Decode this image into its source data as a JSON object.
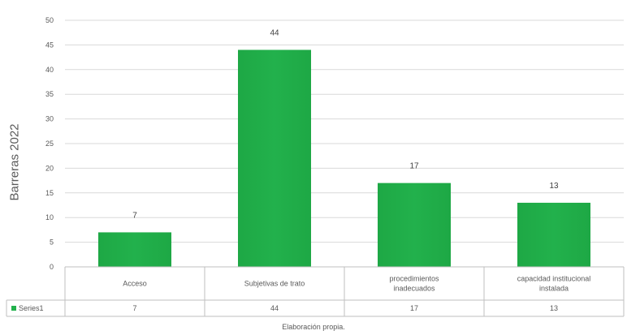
{
  "chart_data": {
    "type": "bar",
    "categories": [
      "Acceso",
      "Subjetivas de trato",
      "procedimientos inadecuados",
      "capacidad institucional instalada"
    ],
    "category_lines": [
      [
        "Acceso"
      ],
      [
        "Subjetivas de trato"
      ],
      [
        "procedimientos",
        "inadecuados"
      ],
      [
        "capacidad institucional",
        "instalada"
      ]
    ],
    "series": [
      {
        "name": "Series1",
        "values": [
          7,
          44,
          17,
          13
        ]
      }
    ],
    "ylabel": "Barreras 2022",
    "ylim": [
      0,
      50
    ],
    "yticks": [
      0,
      5,
      10,
      15,
      20,
      25,
      30,
      35,
      40,
      45,
      50
    ],
    "data_labels": [
      "7",
      "44",
      "17",
      "13"
    ],
    "data_table": true,
    "grid": true,
    "legend": "data-table-left",
    "color": "#22b14c",
    "source_note": "Elaboración propia."
  }
}
